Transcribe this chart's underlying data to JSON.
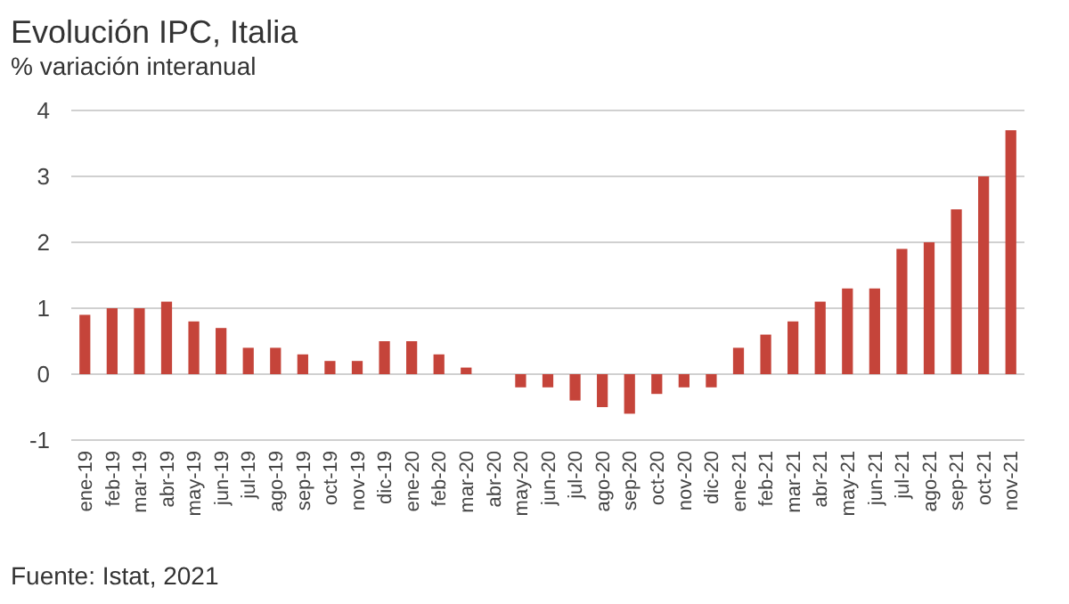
{
  "chart_data": {
    "type": "bar",
    "title": "Evolución IPC, Italia",
    "subtitle": "% variación interanual",
    "categories": [
      "ene-19",
      "feb-19",
      "mar-19",
      "abr-19",
      "may-19",
      "jun-19",
      "jul-19",
      "ago-19",
      "sep-19",
      "oct-19",
      "nov-19",
      "dic-19",
      "ene-20",
      "feb-20",
      "mar-20",
      "abr-20",
      "may-20",
      "jun-20",
      "jul-20",
      "ago-20",
      "sep-20",
      "oct-20",
      "nov-20",
      "dic-20",
      "ene-21",
      "feb-21",
      "mar-21",
      "abr-21",
      "may-21",
      "jun-21",
      "jul-21",
      "ago-21",
      "sep-21",
      "oct-21",
      "nov-21"
    ],
    "values": [
      0.9,
      1.0,
      1.0,
      1.1,
      0.8,
      0.7,
      0.4,
      0.4,
      0.3,
      0.2,
      0.2,
      0.5,
      0.5,
      0.3,
      0.1,
      0,
      -0.2,
      -0.2,
      -0.4,
      -0.5,
      -0.6,
      -0.3,
      -0.2,
      -0.2,
      0.4,
      0.6,
      0.8,
      1.1,
      1.3,
      1.3,
      1.9,
      2.0,
      2.5,
      3.0,
      3.7
    ],
    "color": "#c5443a",
    "ylim": [
      -1,
      4
    ],
    "yticks": [
      {
        "value": -1,
        "label": "-1"
      },
      0,
      1,
      2,
      3,
      4
    ],
    "grid": "y",
    "annotations": [
      "Fuente: Istat, 2021"
    ]
  }
}
